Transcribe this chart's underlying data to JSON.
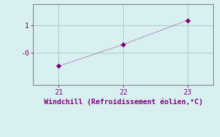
{
  "x": [
    21,
    22,
    23
  ],
  "y": [
    -0.5,
    0.3,
    1.2
  ],
  "line_color": "#800080",
  "marker": "D",
  "marker_size": 3,
  "background_color": "#d8f0f0",
  "grid_color": "#a8c8c8",
  "tick_color": "#800080",
  "label_color": "#800080",
  "xlabel": "Windchill (Refroidissement éolien,°C)",
  "xlim": [
    20.6,
    23.4
  ],
  "ylim": [
    -1.2,
    1.8
  ],
  "xticks": [
    21,
    22,
    23
  ],
  "yticks": [
    0,
    1
  ],
  "ytick_labels": [
    "-0",
    "1"
  ],
  "spine_color": "#808080",
  "font_size": 7.5
}
